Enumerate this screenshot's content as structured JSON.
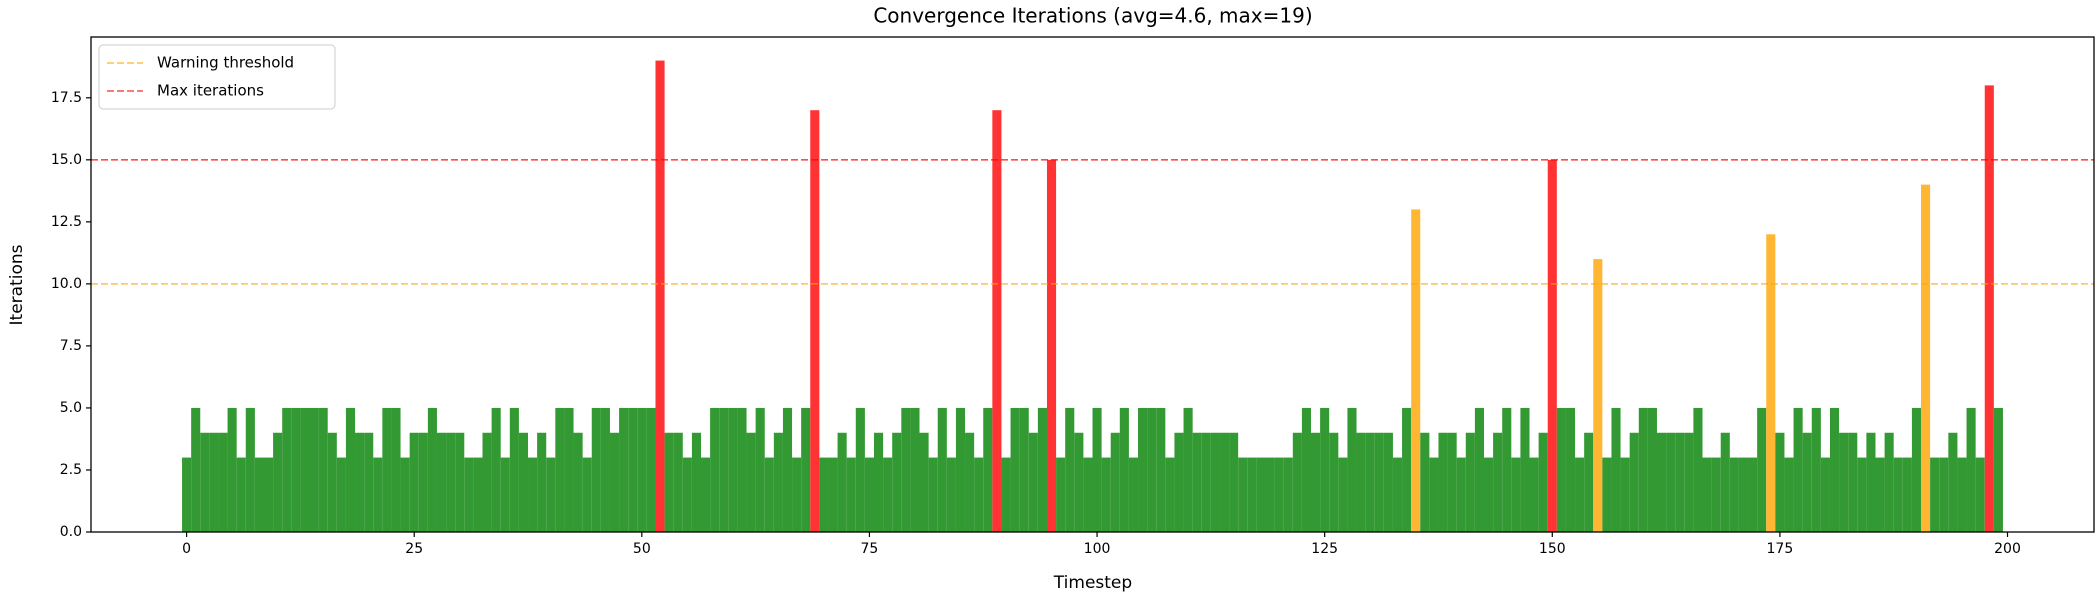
{
  "chart_data": {
    "type": "bar",
    "title": "Convergence Iterations (avg=4.6, max=19)",
    "x_label": "Timestep",
    "y_label": "Iterations",
    "x": [
      0,
      1,
      2,
      3,
      4,
      5,
      6,
      7,
      8,
      9,
      10,
      11,
      12,
      13,
      14,
      15,
      16,
      17,
      18,
      19,
      20,
      21,
      22,
      23,
      24,
      25,
      26,
      27,
      28,
      29,
      30,
      31,
      32,
      33,
      34,
      35,
      36,
      37,
      38,
      39,
      40,
      41,
      42,
      43,
      44,
      45,
      46,
      47,
      48,
      49,
      50,
      51,
      52,
      53,
      54,
      55,
      56,
      57,
      58,
      59,
      60,
      61,
      62,
      63,
      64,
      65,
      66,
      67,
      68,
      69,
      70,
      71,
      72,
      73,
      74,
      75,
      76,
      77,
      78,
      79,
      80,
      81,
      82,
      83,
      84,
      85,
      86,
      87,
      88,
      89,
      90,
      91,
      92,
      93,
      94,
      95,
      96,
      97,
      98,
      99,
      100,
      101,
      102,
      103,
      104,
      105,
      106,
      107,
      108,
      109,
      110,
      111,
      112,
      113,
      114,
      115,
      116,
      117,
      118,
      119,
      120,
      121,
      122,
      123,
      124,
      125,
      126,
      127,
      128,
      129,
      130,
      131,
      132,
      133,
      134,
      135,
      136,
      137,
      138,
      139,
      140,
      141,
      142,
      143,
      144,
      145,
      146,
      147,
      148,
      149,
      150,
      151,
      152,
      153,
      154,
      155,
      156,
      157,
      158,
      159,
      160,
      161,
      162,
      163,
      164,
      165,
      166,
      167,
      168,
      169,
      170,
      171,
      172,
      173,
      174,
      175,
      176,
      177,
      178,
      179,
      180,
      181,
      182,
      183,
      184,
      185,
      186,
      187,
      188,
      189,
      190,
      191,
      192,
      193,
      194,
      195,
      196,
      197,
      198,
      199
    ],
    "series": [
      {
        "values": [
          3,
          5,
          4,
          4,
          4,
          5,
          3,
          5,
          3,
          3,
          4,
          5,
          5,
          5,
          5,
          5,
          4,
          3,
          5,
          4,
          4,
          3,
          5,
          5,
          3,
          4,
          4,
          5,
          4,
          4,
          4,
          3,
          3,
          4,
          5,
          3,
          5,
          4,
          3,
          4,
          3,
          5,
          5,
          4,
          3,
          5,
          5,
          4,
          5,
          5,
          5,
          5,
          19,
          4,
          4,
          3,
          4,
          3,
          5,
          5,
          5,
          5,
          4,
          5,
          3,
          4,
          5,
          3,
          5,
          17,
          3,
          3,
          4,
          3,
          5,
          3,
          4,
          3,
          4,
          5,
          5,
          4,
          3,
          5,
          3,
          5,
          4,
          3,
          5,
          17,
          3,
          5,
          5,
          4,
          5,
          15,
          3,
          5,
          4,
          3,
          5,
          3,
          4,
          5,
          3,
          5,
          5,
          5,
          3,
          4,
          5,
          4,
          4,
          4,
          4,
          4,
          3,
          3,
          3,
          3,
          3,
          3,
          4,
          5,
          4,
          5,
          4,
          3,
          5,
          4,
          4,
          4,
          4,
          3,
          5,
          13,
          4,
          3,
          4,
          4,
          3,
          4,
          5,
          3,
          4,
          5,
          3,
          5,
          3,
          4,
          15,
          5,
          5,
          3,
          4,
          11,
          3,
          5,
          3,
          4,
          5,
          5,
          4,
          4,
          4,
          4,
          5,
          3,
          3,
          4,
          3,
          3,
          3,
          5,
          12,
          4,
          3,
          5,
          4,
          5,
          3,
          5,
          4,
          4,
          3,
          4,
          3,
          4,
          3,
          3,
          5,
          14,
          3,
          3,
          4,
          3,
          5,
          3,
          18,
          5
        ]
      }
    ],
    "bar_colors": {
      "normal": "#339933",
      "warning": "#ffb733",
      "max": "#ff3333"
    },
    "hlines": [
      {
        "name": "Warning threshold",
        "value": 10,
        "color": "#ffa500"
      },
      {
        "name": "Max iterations",
        "value": 15,
        "color": "#ff0000"
      }
    ],
    "xlim": [
      -10.5,
      209.5
    ],
    "xticks": [
      0,
      25,
      50,
      75,
      100,
      125,
      150,
      175,
      200
    ],
    "ylim": [
      0,
      19.95
    ],
    "yticks": [
      {
        "value": 0,
        "label": "0.0"
      },
      2.5,
      {
        "value": 5,
        "label": "5.0"
      },
      7.5,
      {
        "value": 10,
        "label": "10.0"
      },
      12.5,
      {
        "value": 15,
        "label": "15.0"
      },
      17.5
    ],
    "legend": "upper left"
  }
}
